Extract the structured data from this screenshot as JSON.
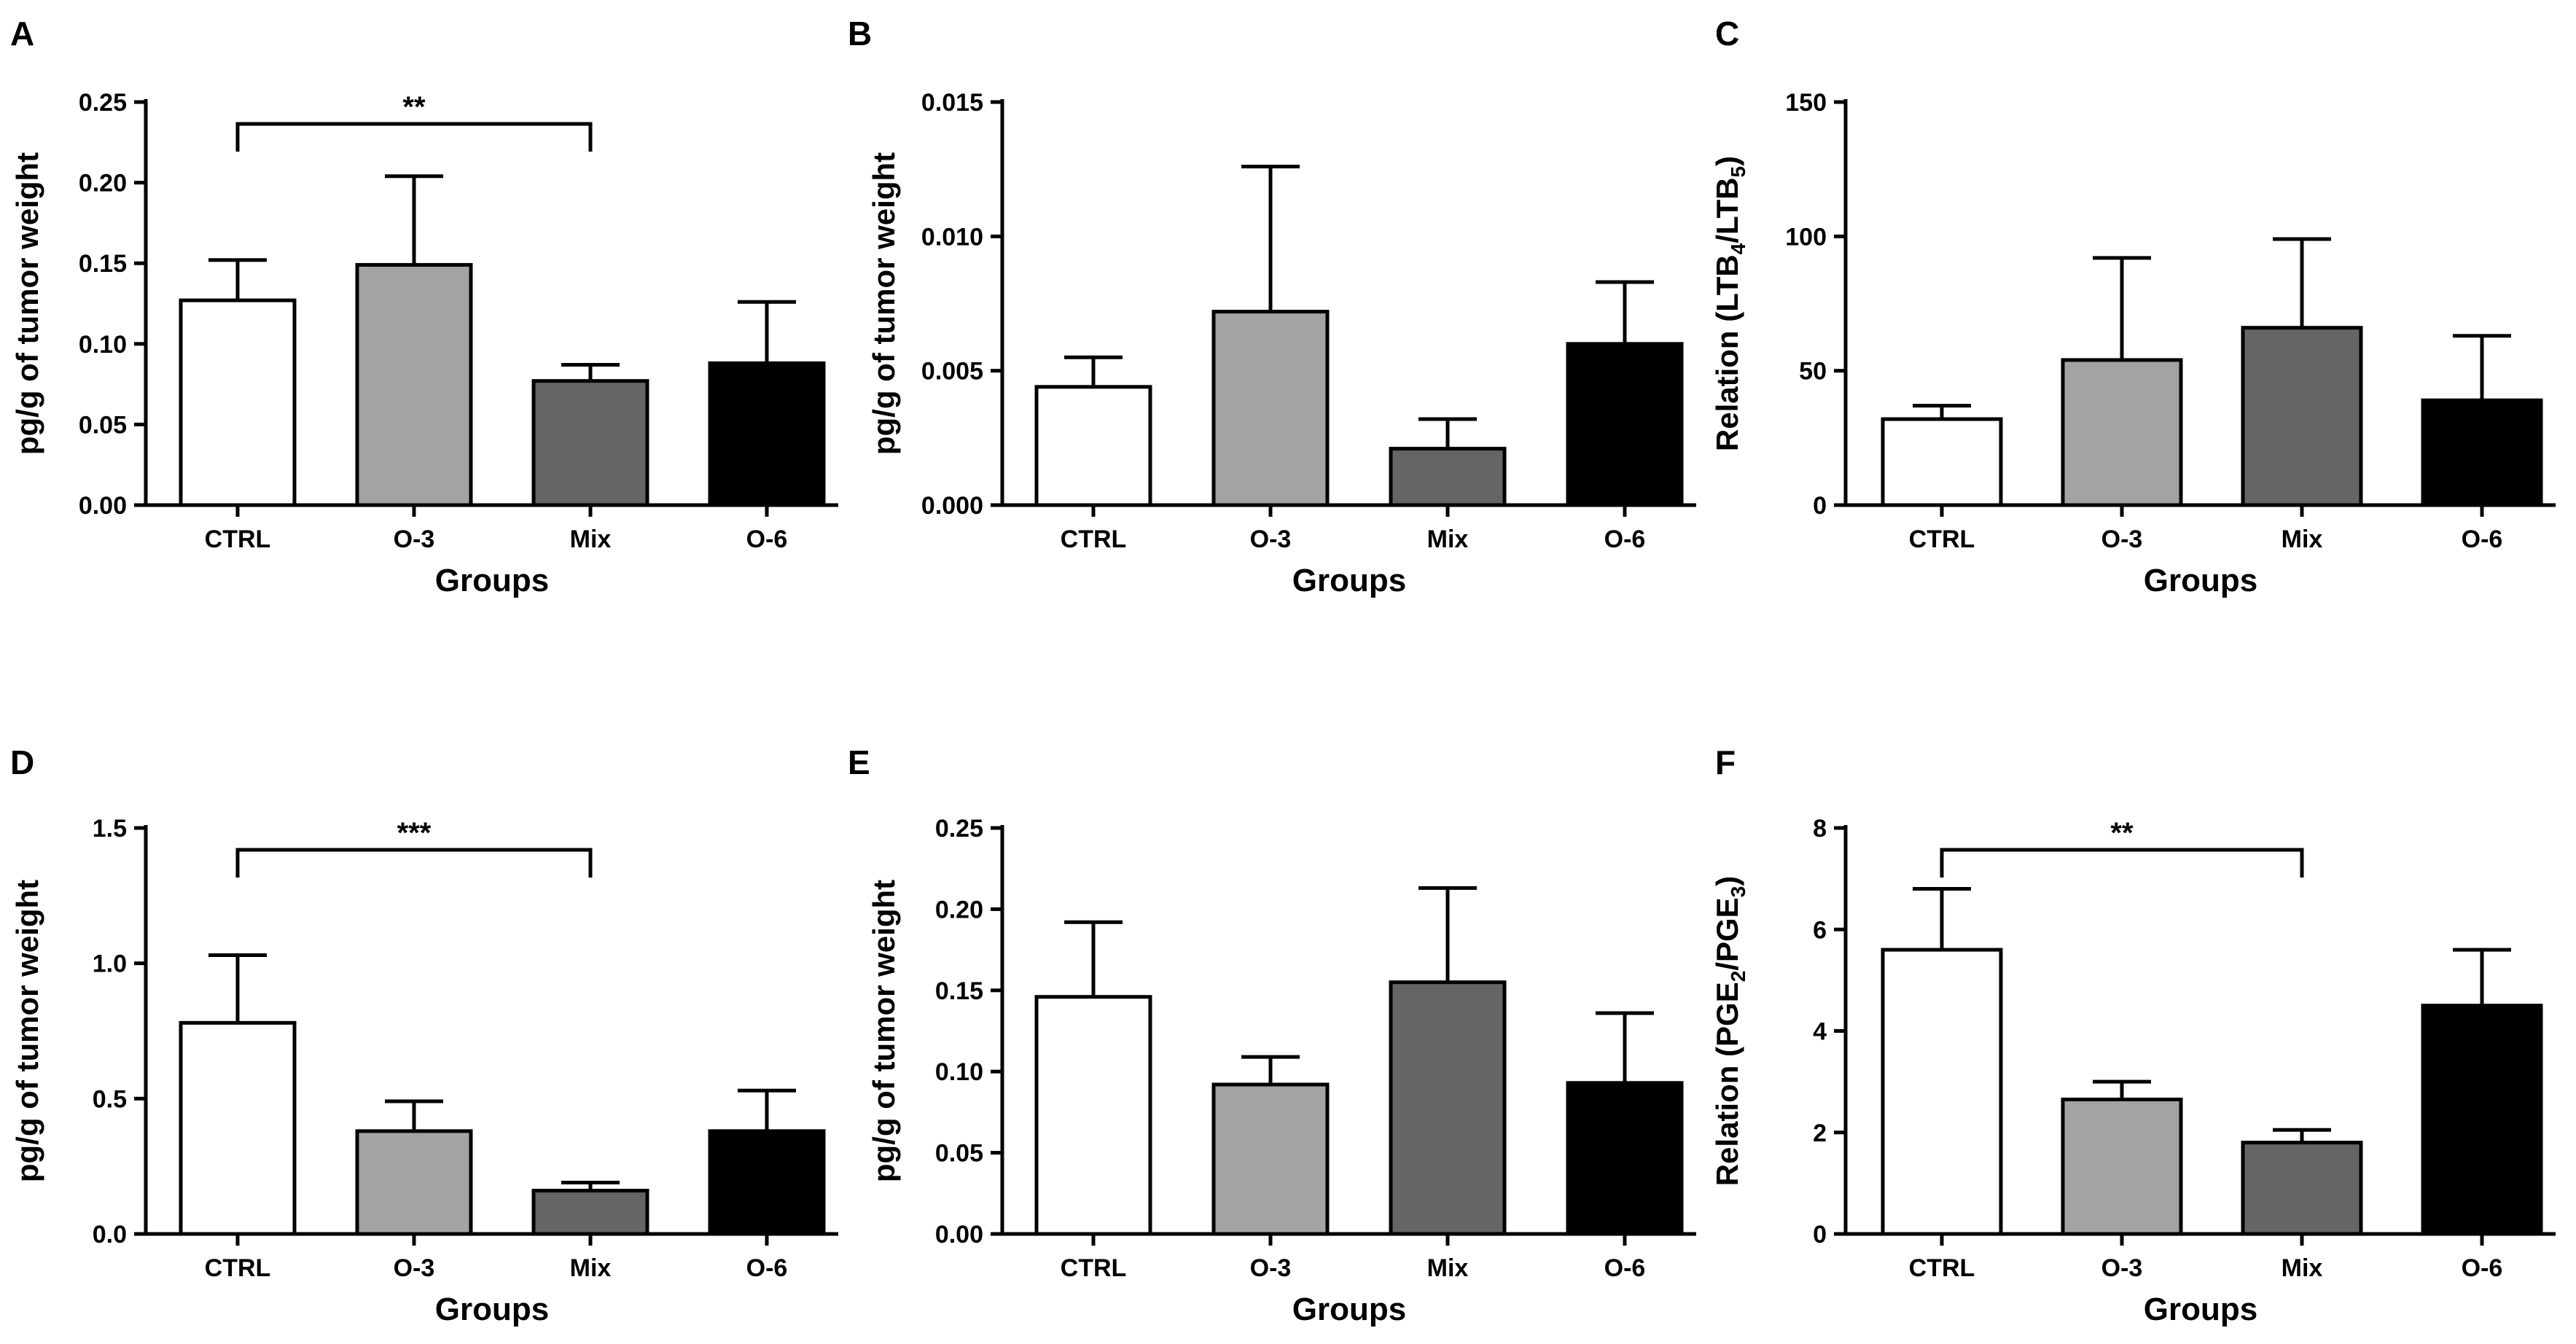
{
  "chart_data": [
    {
      "panel": "A",
      "type": "bar",
      "categories": [
        "CTRL",
        "O-3",
        "Mix",
        "O-6"
      ],
      "values": [
        0.127,
        0.149,
        0.077,
        0.088
      ],
      "errors": [
        0.025,
        0.055,
        0.01,
        0.038
      ],
      "ylim": [
        0,
        0.25
      ],
      "yticks": [
        "0.00",
        "0.05",
        "0.10",
        "0.15",
        "0.20",
        "0.25"
      ],
      "ylabel": "pg/g of tumor weight",
      "xlabel": "Groups",
      "significance": {
        "from": "CTRL",
        "to": "Mix",
        "label": "**"
      }
    },
    {
      "panel": "B",
      "type": "bar",
      "categories": [
        "CTRL",
        "O-3",
        "Mix",
        "O-6"
      ],
      "values": [
        0.0044,
        0.0072,
        0.0021,
        0.006
      ],
      "errors": [
        0.0011,
        0.0054,
        0.0011,
        0.0023
      ],
      "ylim": [
        0,
        0.015
      ],
      "yticks": [
        "0.000",
        "0.005",
        "0.010",
        "0.015"
      ],
      "ylabel": "pg/g of tumor weight",
      "xlabel": "Groups"
    },
    {
      "panel": "C",
      "type": "bar",
      "categories": [
        "CTRL",
        "O-3",
        "Mix",
        "O-6"
      ],
      "values": [
        32,
        54,
        66,
        39
      ],
      "errors": [
        5,
        38,
        33,
        24
      ],
      "ylim": [
        0,
        150
      ],
      "yticks": [
        "0",
        "50",
        "100",
        "150"
      ],
      "ylabel": "Relation (LTB4/LTB5)",
      "ylabel_parts": [
        {
          "text": "Relation (LTB"
        },
        {
          "sub": "4"
        },
        {
          "text": "/LTB"
        },
        {
          "sub": "5"
        },
        {
          "text": ")"
        }
      ],
      "xlabel": "Groups"
    },
    {
      "panel": "D",
      "type": "bar",
      "categories": [
        "CTRL",
        "O-3",
        "Mix",
        "O-6"
      ],
      "values": [
        0.78,
        0.38,
        0.16,
        0.38
      ],
      "errors": [
        0.25,
        0.11,
        0.03,
        0.15
      ],
      "ylim": [
        0,
        1.5
      ],
      "yticks": [
        "0.0",
        "0.5",
        "1.0",
        "1.5"
      ],
      "ylabel": "pg/g of tumor weight",
      "xlabel": "Groups",
      "significance": {
        "from": "CTRL",
        "to": "Mix",
        "label": "***"
      }
    },
    {
      "panel": "E",
      "type": "bar",
      "categories": [
        "CTRL",
        "O-3",
        "Mix",
        "O-6"
      ],
      "values": [
        0.146,
        0.092,
        0.155,
        0.093
      ],
      "errors": [
        0.046,
        0.017,
        0.058,
        0.043
      ],
      "ylim": [
        0,
        0.25
      ],
      "yticks": [
        "0.00",
        "0.05",
        "0.10",
        "0.15",
        "0.20",
        "0.25"
      ],
      "ylabel": "pg/g of tumor weight",
      "xlabel": "Groups"
    },
    {
      "panel": "F",
      "type": "bar",
      "categories": [
        "CTRL",
        "O-3",
        "Mix",
        "O-6"
      ],
      "values": [
        5.6,
        2.65,
        1.8,
        4.5
      ],
      "errors": [
        1.2,
        0.35,
        0.25,
        1.1
      ],
      "ylim": [
        0,
        8
      ],
      "yticks": [
        "0",
        "2",
        "4",
        "6",
        "8"
      ],
      "ylabel": "Relation (PGE2/PGE3)",
      "ylabel_parts": [
        {
          "text": "Relation (PGE"
        },
        {
          "sub": "2"
        },
        {
          "text": "/PGE"
        },
        {
          "sub": "3"
        },
        {
          "text": ")"
        }
      ],
      "xlabel": "Groups",
      "significance": {
        "from": "CTRL",
        "to": "Mix",
        "label": "**"
      }
    }
  ],
  "colors": {
    "bar_fills": [
      "#ffffff",
      "#a3a3a6",
      "#656566",
      "#000000"
    ],
    "stroke": "#000000"
  }
}
